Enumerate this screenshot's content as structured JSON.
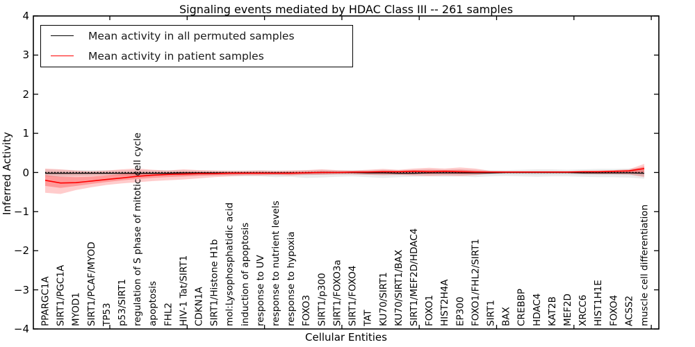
{
  "title": "Signaling events mediated by HDAC Class III -- 261 samples",
  "axes": {
    "x_label": "Cellular Entities",
    "y_label": "Inferred Activity",
    "y_tick_labels": [
      "4",
      "3",
      "2",
      "1",
      "0",
      "−1",
      "−2",
      "−3",
      "−4"
    ],
    "y_tick_values": [
      4,
      3,
      2,
      1,
      0,
      -1,
      -2,
      -3,
      -4
    ]
  },
  "legend": {
    "items": [
      {
        "label": "Mean activity in all permuted samples",
        "color": "#000000"
      },
      {
        "label": "Mean activity in patient samples",
        "color": "#ff0000"
      }
    ]
  },
  "colors": {
    "frame": "#000000",
    "permuted_line": "#000000",
    "patient_line": "#ff0000",
    "permuted_band": "#999999",
    "patient_band": "#ff0000",
    "background": "#ffffff"
  },
  "chart_data": {
    "type": "line",
    "title": "Signaling events mediated by HDAC Class III -- 261 samples",
    "xlabel": "Cellular Entities",
    "ylabel": "Inferred Activity",
    "ylim": [
      -4,
      4
    ],
    "grid": false,
    "legend_position": "upper left",
    "zero_reference_line": 0,
    "categories": [
      "PPARGC1A",
      "SIRT1/PGC1A",
      "MYOD1",
      "SIRT1/PCAF/MYOD",
      "TP53",
      "p53/SIRT1",
      "regulation of S phase of mitotic cell cycle",
      "apoptosis",
      "FHL2",
      "HIV-1 Tat/SIRT1",
      "CDKN1A",
      "SIRT1/Histone H1b",
      "mol:Lysophosphatidic acid",
      "induction of apoptosis",
      "response to UV",
      "response to nutrient levels",
      "response to hypoxia",
      "FOXO3",
      "SIRT1/p300",
      "SIRT1/FOXO3a",
      "SIRT1/FOXO4",
      "TAT",
      "KU70/SIRT1",
      "KU70/SIRT1/BAX",
      "SIRT1/MEF2D/HDAC4",
      "FOXO1",
      "HIST2H4A",
      "EP300",
      "FOXO1/FHL2/SIRT1",
      "SIRT1",
      "BAX",
      "CREBBP",
      "HDAC4",
      "KAT2B",
      "MEF2D",
      "XRCC6",
      "HIST1H1E",
      "FOXO4",
      "ACSS2",
      "muscle cell differentiation"
    ],
    "series": [
      {
        "name": "Mean activity in all permuted samples",
        "color": "#000000",
        "values": [
          -0.02,
          -0.02,
          -0.02,
          -0.02,
          -0.02,
          -0.02,
          -0.02,
          -0.02,
          -0.02,
          -0.01,
          -0.01,
          -0.01,
          -0.01,
          -0.01,
          -0.01,
          -0.01,
          -0.01,
          -0.01,
          0,
          0,
          0,
          -0.01,
          -0.01,
          -0.02,
          -0.02,
          -0.01,
          -0.01,
          -0.01,
          -0.01,
          -0.01,
          0,
          0,
          0,
          0,
          0,
          -0.01,
          -0.01,
          -0.01,
          -0.01,
          -0.02
        ],
        "band_upper": [
          0.08,
          0.07,
          0.06,
          0.06,
          0.06,
          0.06,
          0.07,
          0.06,
          0.06,
          0.06,
          0.05,
          0.05,
          0.05,
          0.05,
          0.06,
          0.05,
          0.05,
          0.06,
          0.07,
          0.06,
          0.06,
          0.06,
          0.07,
          0.06,
          0.07,
          0.08,
          0.07,
          0.08,
          0.07,
          0.06,
          0.06,
          0.07,
          0.08,
          0.08,
          0.07,
          0.08,
          0.09,
          0.09,
          0.1,
          0.12
        ],
        "band_lower": [
          -0.1,
          -0.12,
          -0.1,
          -0.09,
          -0.08,
          -0.08,
          -0.09,
          -0.08,
          -0.08,
          -0.09,
          -0.08,
          -0.08,
          -0.09,
          -0.1,
          -0.1,
          -0.12,
          -0.11,
          -0.14,
          -0.13,
          -0.11,
          -0.1,
          -0.12,
          -0.14,
          -0.12,
          -0.11,
          -0.1,
          -0.11,
          -0.1,
          -0.12,
          -0.1,
          -0.09,
          -0.1,
          -0.11,
          -0.1,
          -0.1,
          -0.11,
          -0.12,
          -0.12,
          -0.13,
          -0.16
        ]
      },
      {
        "name": "Mean activity in patient samples",
        "color": "#ff0000",
        "values": [
          -0.2,
          -0.27,
          -0.26,
          -0.22,
          -0.18,
          -0.14,
          -0.1,
          -0.07,
          -0.05,
          -0.04,
          -0.03,
          -0.03,
          -0.02,
          -0.02,
          -0.02,
          -0.02,
          -0.02,
          -0.01,
          0,
          0,
          0.01,
          0.01,
          0.02,
          0.02,
          0.03,
          0.02,
          0.03,
          0.02,
          0.01,
          0.01,
          0.01,
          0.01,
          0.01,
          0.01,
          0.01,
          0.02,
          0.02,
          0.03,
          0.04,
          0.1
        ],
        "band_upper": [
          0.1,
          0.08,
          0.05,
          0.03,
          0.05,
          0.08,
          0.1,
          0.07,
          0.05,
          0.08,
          0.06,
          0.05,
          0.04,
          0.04,
          0.05,
          0.04,
          0.05,
          0.06,
          0.08,
          0.06,
          0.05,
          0.07,
          0.09,
          0.07,
          0.1,
          0.12,
          0.1,
          0.13,
          0.1,
          0.04,
          0.03,
          0.03,
          0.03,
          0.03,
          0.03,
          0.04,
          0.05,
          0.06,
          0.08,
          0.22
        ],
        "band_lower": [
          -0.52,
          -0.55,
          -0.45,
          -0.38,
          -0.32,
          -0.28,
          -0.25,
          -0.22,
          -0.2,
          -0.18,
          -0.15,
          -0.12,
          -0.1,
          -0.08,
          -0.08,
          -0.07,
          -0.08,
          -0.06,
          -0.06,
          -0.05,
          -0.05,
          -0.06,
          -0.07,
          -0.06,
          -0.08,
          -0.09,
          -0.08,
          -0.09,
          -0.07,
          -0.03,
          -0.02,
          -0.02,
          -0.02,
          -0.02,
          -0.02,
          -0.03,
          -0.04,
          -0.04,
          -0.05,
          -0.12
        ]
      }
    ]
  }
}
